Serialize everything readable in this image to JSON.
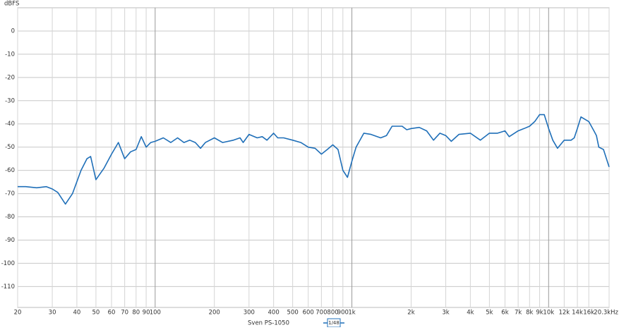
{
  "chart_data": {
    "type": "line",
    "y_label": "dBFS",
    "log_x": true,
    "grid": true,
    "legend": "bottom",
    "smoothing": "1/48",
    "x": [
      20,
      22,
      25,
      28,
      30,
      32,
      35,
      38,
      42,
      45,
      47,
      50,
      55,
      60,
      65,
      70,
      75,
      80,
      85,
      90,
      95,
      100,
      110,
      120,
      130,
      140,
      150,
      160,
      170,
      180,
      200,
      220,
      250,
      270,
      280,
      300,
      330,
      350,
      370,
      400,
      420,
      450,
      500,
      550,
      600,
      650,
      700,
      750,
      800,
      850,
      900,
      950,
      1000,
      1050,
      1150,
      1250,
      1400,
      1500,
      1600,
      1800,
      1900,
      2000,
      2200,
      2400,
      2600,
      2800,
      3000,
      3200,
      3500,
      4000,
      4500,
      5000,
      5500,
      6000,
      6300,
      7000,
      7500,
      8000,
      8500,
      9000,
      9500,
      10000,
      10500,
      11100,
      12000,
      13000,
      13500,
      14000,
      14600,
      16000,
      17000,
      17500,
      18000,
      19000,
      20300
    ],
    "series": [
      {
        "name": "Sven PS-1050",
        "color": "#1f6fb8",
        "values": [
          -67,
          -67,
          -67.5,
          -67,
          -68,
          -69.5,
          -74.5,
          -70,
          -60,
          -55,
          -54,
          -64,
          -59,
          -53,
          -48,
          -55,
          -52,
          -51,
          -45.5,
          -50,
          -48,
          -47.5,
          -46,
          -48,
          -46,
          -48,
          -47,
          -48,
          -50.5,
          -48,
          -46,
          -48,
          -47,
          -46,
          -48,
          -44.5,
          -46,
          -45.5,
          -47,
          -44,
          -46,
          -46,
          -47,
          -48,
          -50,
          -50.5,
          -53,
          -51,
          -49,
          -51,
          -60,
          -63,
          -56,
          -50,
          -44,
          -44.5,
          -46,
          -45,
          -41,
          -41,
          -42.5,
          -42,
          -41.5,
          -43,
          -47,
          -44,
          -45,
          -47.5,
          -44.5,
          -44,
          -47,
          -44,
          -44,
          -43,
          -45.5,
          -43,
          -42,
          -41,
          -39,
          -36,
          -36,
          -42,
          -47,
          -50.5,
          -47,
          -47,
          -46,
          -42,
          -37,
          -39,
          -43,
          -45,
          -50,
          -51,
          -58.5
        ]
      }
    ],
    "xlim": [
      20,
      20300
    ],
    "xticks": [
      20,
      30,
      40,
      50,
      60,
      70,
      80,
      90,
      100,
      200,
      300,
      400,
      500,
      600,
      700,
      800,
      900,
      {
        "value": 1000,
        "label": "1k"
      },
      {
        "value": 2000,
        "label": "2k"
      },
      {
        "value": 3000,
        "label": "3k"
      },
      {
        "value": 4000,
        "label": "4k"
      },
      {
        "value": 5000,
        "label": "5k"
      },
      {
        "value": 6000,
        "label": "6k"
      },
      {
        "value": 7000,
        "label": "7k"
      },
      {
        "value": 8000,
        "label": "8k"
      },
      {
        "value": 9000,
        "label": "9k"
      },
      {
        "value": 10000,
        "label": "10k"
      },
      {
        "value": 12000,
        "label": "12k"
      },
      {
        "value": 14000,
        "label": "14k"
      },
      {
        "value": 16000,
        "label": "16k"
      },
      {
        "value": 20300,
        "label": "20.3kHz"
      }
    ],
    "ylim": [
      -119,
      10
    ],
    "yticks": [
      0,
      -10,
      -20,
      -30,
      -40,
      -50,
      -60,
      -70,
      -80,
      -90,
      -100,
      -110
    ]
  }
}
